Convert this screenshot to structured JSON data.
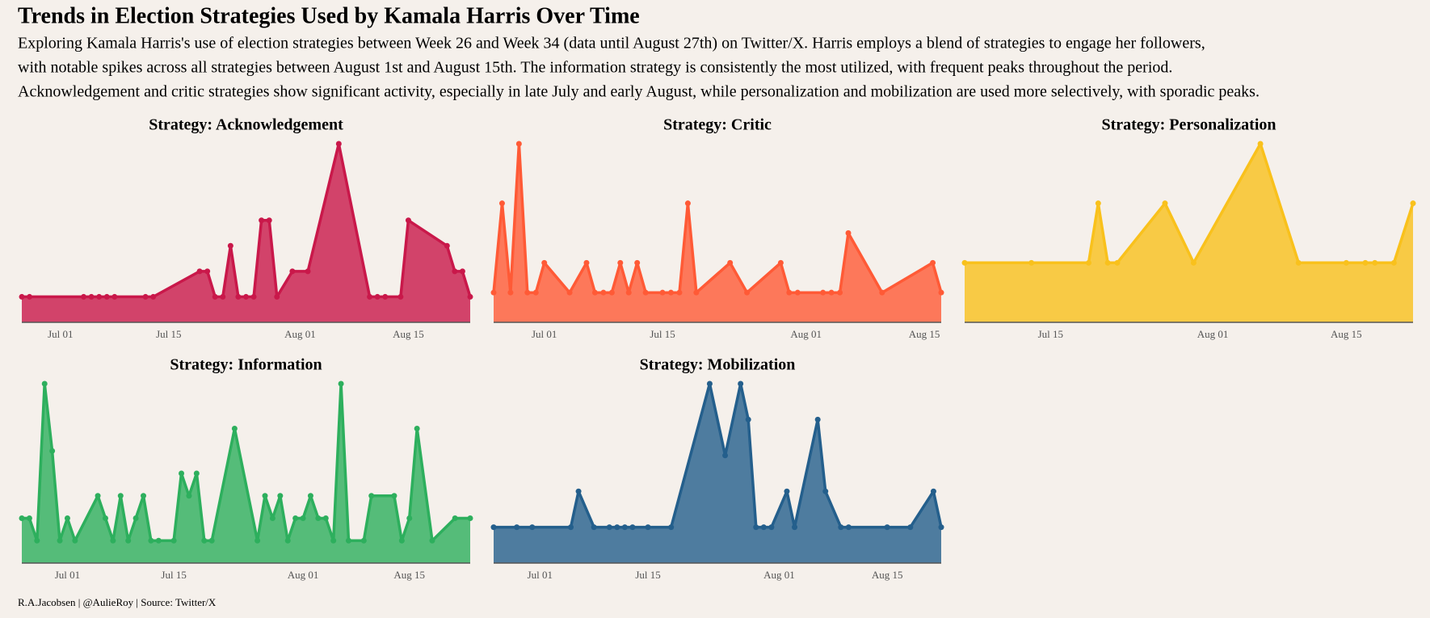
{
  "title": "Trends in Election Strategies Used by Kamala Harris Over Time",
  "subtitle": [
    "Exploring Kamala Harris's use of election strategies between Week 26 and Week 34 (data until August 27th) on Twitter/X. Harris employs a blend of strategies to engage her followers,",
    "with notable spikes across all strategies between August 1st and August 15th. The information strategy is consistently the most utilized, with frequent peaks throughout the period.",
    "Acknowledgement and critic strategies show significant activity, especially in late July and early August, while personalization and mobilization are used more selectively, with sporadic peaks."
  ],
  "caption": "R.A.Jacobsen | @AulieRoy | Source: Twitter/X",
  "chart_data": [
    {
      "type": "area",
      "title": "Strategy: Acknowledgement",
      "color": "#c9184a",
      "x": [
        "06-26",
        "06-27",
        "07-04",
        "07-05",
        "07-06",
        "07-07",
        "07-08",
        "07-12",
        "07-13",
        "07-19",
        "07-20",
        "07-21",
        "07-22",
        "07-23",
        "07-24",
        "07-25",
        "07-26",
        "07-27",
        "07-28",
        "07-29",
        "07-31",
        "08-02",
        "08-06",
        "08-10",
        "08-11",
        "08-12",
        "08-14",
        "08-15",
        "08-20",
        "08-21",
        "08-22",
        "08-23"
      ],
      "values": [
        1,
        1,
        1,
        1,
        1,
        1,
        1,
        1,
        1,
        2,
        2,
        1,
        1,
        3,
        1,
        1,
        1,
        4,
        4,
        1,
        2,
        2,
        7,
        1,
        1,
        1,
        1,
        4,
        3,
        2,
        2,
        1
      ],
      "xlim": [
        "06-26",
        "08-23"
      ],
      "ylim": [
        0,
        7
      ],
      "xticks": [
        {
          "value": "07-01",
          "label": "Jul 01"
        },
        {
          "value": "07-15",
          "label": "Jul 15"
        },
        {
          "value": "08-01",
          "label": "Aug 01"
        },
        {
          "value": "08-15",
          "label": "Aug 15"
        }
      ]
    },
    {
      "type": "area",
      "title": "Strategy: Critic",
      "color": "#ff5a36",
      "x": [
        "06-25",
        "06-26",
        "06-27",
        "06-28",
        "06-29",
        "06-30",
        "07-01",
        "07-04",
        "07-06",
        "07-07",
        "07-08",
        "07-09",
        "07-10",
        "07-11",
        "07-12",
        "07-13",
        "07-15",
        "07-16",
        "07-17",
        "07-18",
        "07-19",
        "07-23",
        "07-25",
        "07-29",
        "07-30",
        "07-31",
        "08-03",
        "08-04",
        "08-05",
        "08-06",
        "08-10",
        "08-16",
        "08-17"
      ],
      "values": [
        1,
        4,
        1,
        6,
        1,
        1,
        2,
        1,
        2,
        1,
        1,
        1,
        2,
        1,
        2,
        1,
        1,
        1,
        1,
        4,
        1,
        2,
        1,
        2,
        1,
        1,
        1,
        1,
        1,
        3,
        1,
        2,
        1
      ],
      "xlim": [
        "06-25",
        "08-17"
      ],
      "ylim": [
        0,
        6
      ],
      "xticks": [
        {
          "value": "07-01",
          "label": "Jul 01"
        },
        {
          "value": "07-15",
          "label": "Jul 15"
        },
        {
          "value": "08-01",
          "label": "Aug 01"
        },
        {
          "value": "08-15",
          "label": "Aug 15"
        }
      ]
    },
    {
      "type": "area",
      "title": "Strategy: Personalization",
      "color": "#f9c11c",
      "x": [
        "07-06",
        "07-13",
        "07-19",
        "07-20",
        "07-21",
        "07-22",
        "07-27",
        "07-30",
        "08-06",
        "08-10",
        "08-15",
        "08-17",
        "08-18",
        "08-20",
        "08-22"
      ],
      "values": [
        1,
        1,
        1,
        2,
        1,
        1,
        2,
        1,
        3,
        1,
        1,
        1,
        1,
        1,
        2
      ],
      "xlim": [
        "07-06",
        "08-22"
      ],
      "ylim": [
        0,
        3
      ],
      "xticks": [
        {
          "value": "07-15",
          "label": "Jul 15"
        },
        {
          "value": "08-01",
          "label": "Aug 01"
        },
        {
          "value": "08-15",
          "label": "Aug 15"
        }
      ]
    },
    {
      "type": "area",
      "title": "Strategy: Information",
      "color": "#2daf5d",
      "x": [
        "06-25",
        "06-26",
        "06-27",
        "06-28",
        "06-29",
        "06-30",
        "07-01",
        "07-02",
        "07-05",
        "07-06",
        "07-07",
        "07-08",
        "07-09",
        "07-10",
        "07-11",
        "07-12",
        "07-13",
        "07-15",
        "07-16",
        "07-17",
        "07-18",
        "07-19",
        "07-20",
        "07-23",
        "07-26",
        "07-27",
        "07-28",
        "07-29",
        "07-30",
        "07-31",
        "08-01",
        "08-02",
        "08-03",
        "08-04",
        "08-05",
        "08-06",
        "08-07",
        "08-09",
        "08-10",
        "08-13",
        "08-14",
        "08-15",
        "08-16",
        "08-18",
        "08-21",
        "08-23"
      ],
      "values": [
        2,
        2,
        1,
        8,
        5,
        1,
        2,
        1,
        3,
        2,
        1,
        3,
        1,
        2,
        3,
        1,
        1,
        1,
        4,
        3,
        4,
        1,
        1,
        6,
        1,
        3,
        2,
        3,
        1,
        2,
        2,
        3,
        2,
        2,
        1,
        8,
        1,
        1,
        3,
        3,
        1,
        2,
        6,
        1,
        2,
        2
      ],
      "xlim": [
        "06-25",
        "08-23"
      ],
      "ylim": [
        0,
        8
      ],
      "xticks": [
        {
          "value": "07-01",
          "label": "Jul 01"
        },
        {
          "value": "07-15",
          "label": "Jul 15"
        },
        {
          "value": "08-01",
          "label": "Aug 01"
        },
        {
          "value": "08-15",
          "label": "Aug 15"
        }
      ]
    },
    {
      "type": "area",
      "title": "Strategy: Mobilization",
      "color": "#245f8c",
      "x": [
        "06-25",
        "06-28",
        "06-30",
        "07-05",
        "07-06",
        "07-08",
        "07-10",
        "07-11",
        "07-12",
        "07-13",
        "07-15",
        "07-18",
        "07-23",
        "07-25",
        "07-27",
        "07-28",
        "07-29",
        "07-30",
        "07-31",
        "08-02",
        "08-03",
        "08-06",
        "08-07",
        "08-09",
        "08-10",
        "08-15",
        "08-18",
        "08-21",
        "08-22"
      ],
      "values": [
        1,
        1,
        1,
        1,
        2,
        1,
        1,
        1,
        1,
        1,
        1,
        1,
        5,
        3,
        5,
        4,
        1,
        1,
        1,
        2,
        1,
        4,
        2,
        1,
        1,
        1,
        1,
        2,
        1
      ],
      "xlim": [
        "06-25",
        "08-22"
      ],
      "ylim": [
        0,
        5
      ],
      "xticks": [
        {
          "value": "07-01",
          "label": "Jul 01"
        },
        {
          "value": "07-15",
          "label": "Jul 15"
        },
        {
          "value": "08-01",
          "label": "Aug 01"
        },
        {
          "value": "08-15",
          "label": "Aug 15"
        }
      ]
    }
  ]
}
